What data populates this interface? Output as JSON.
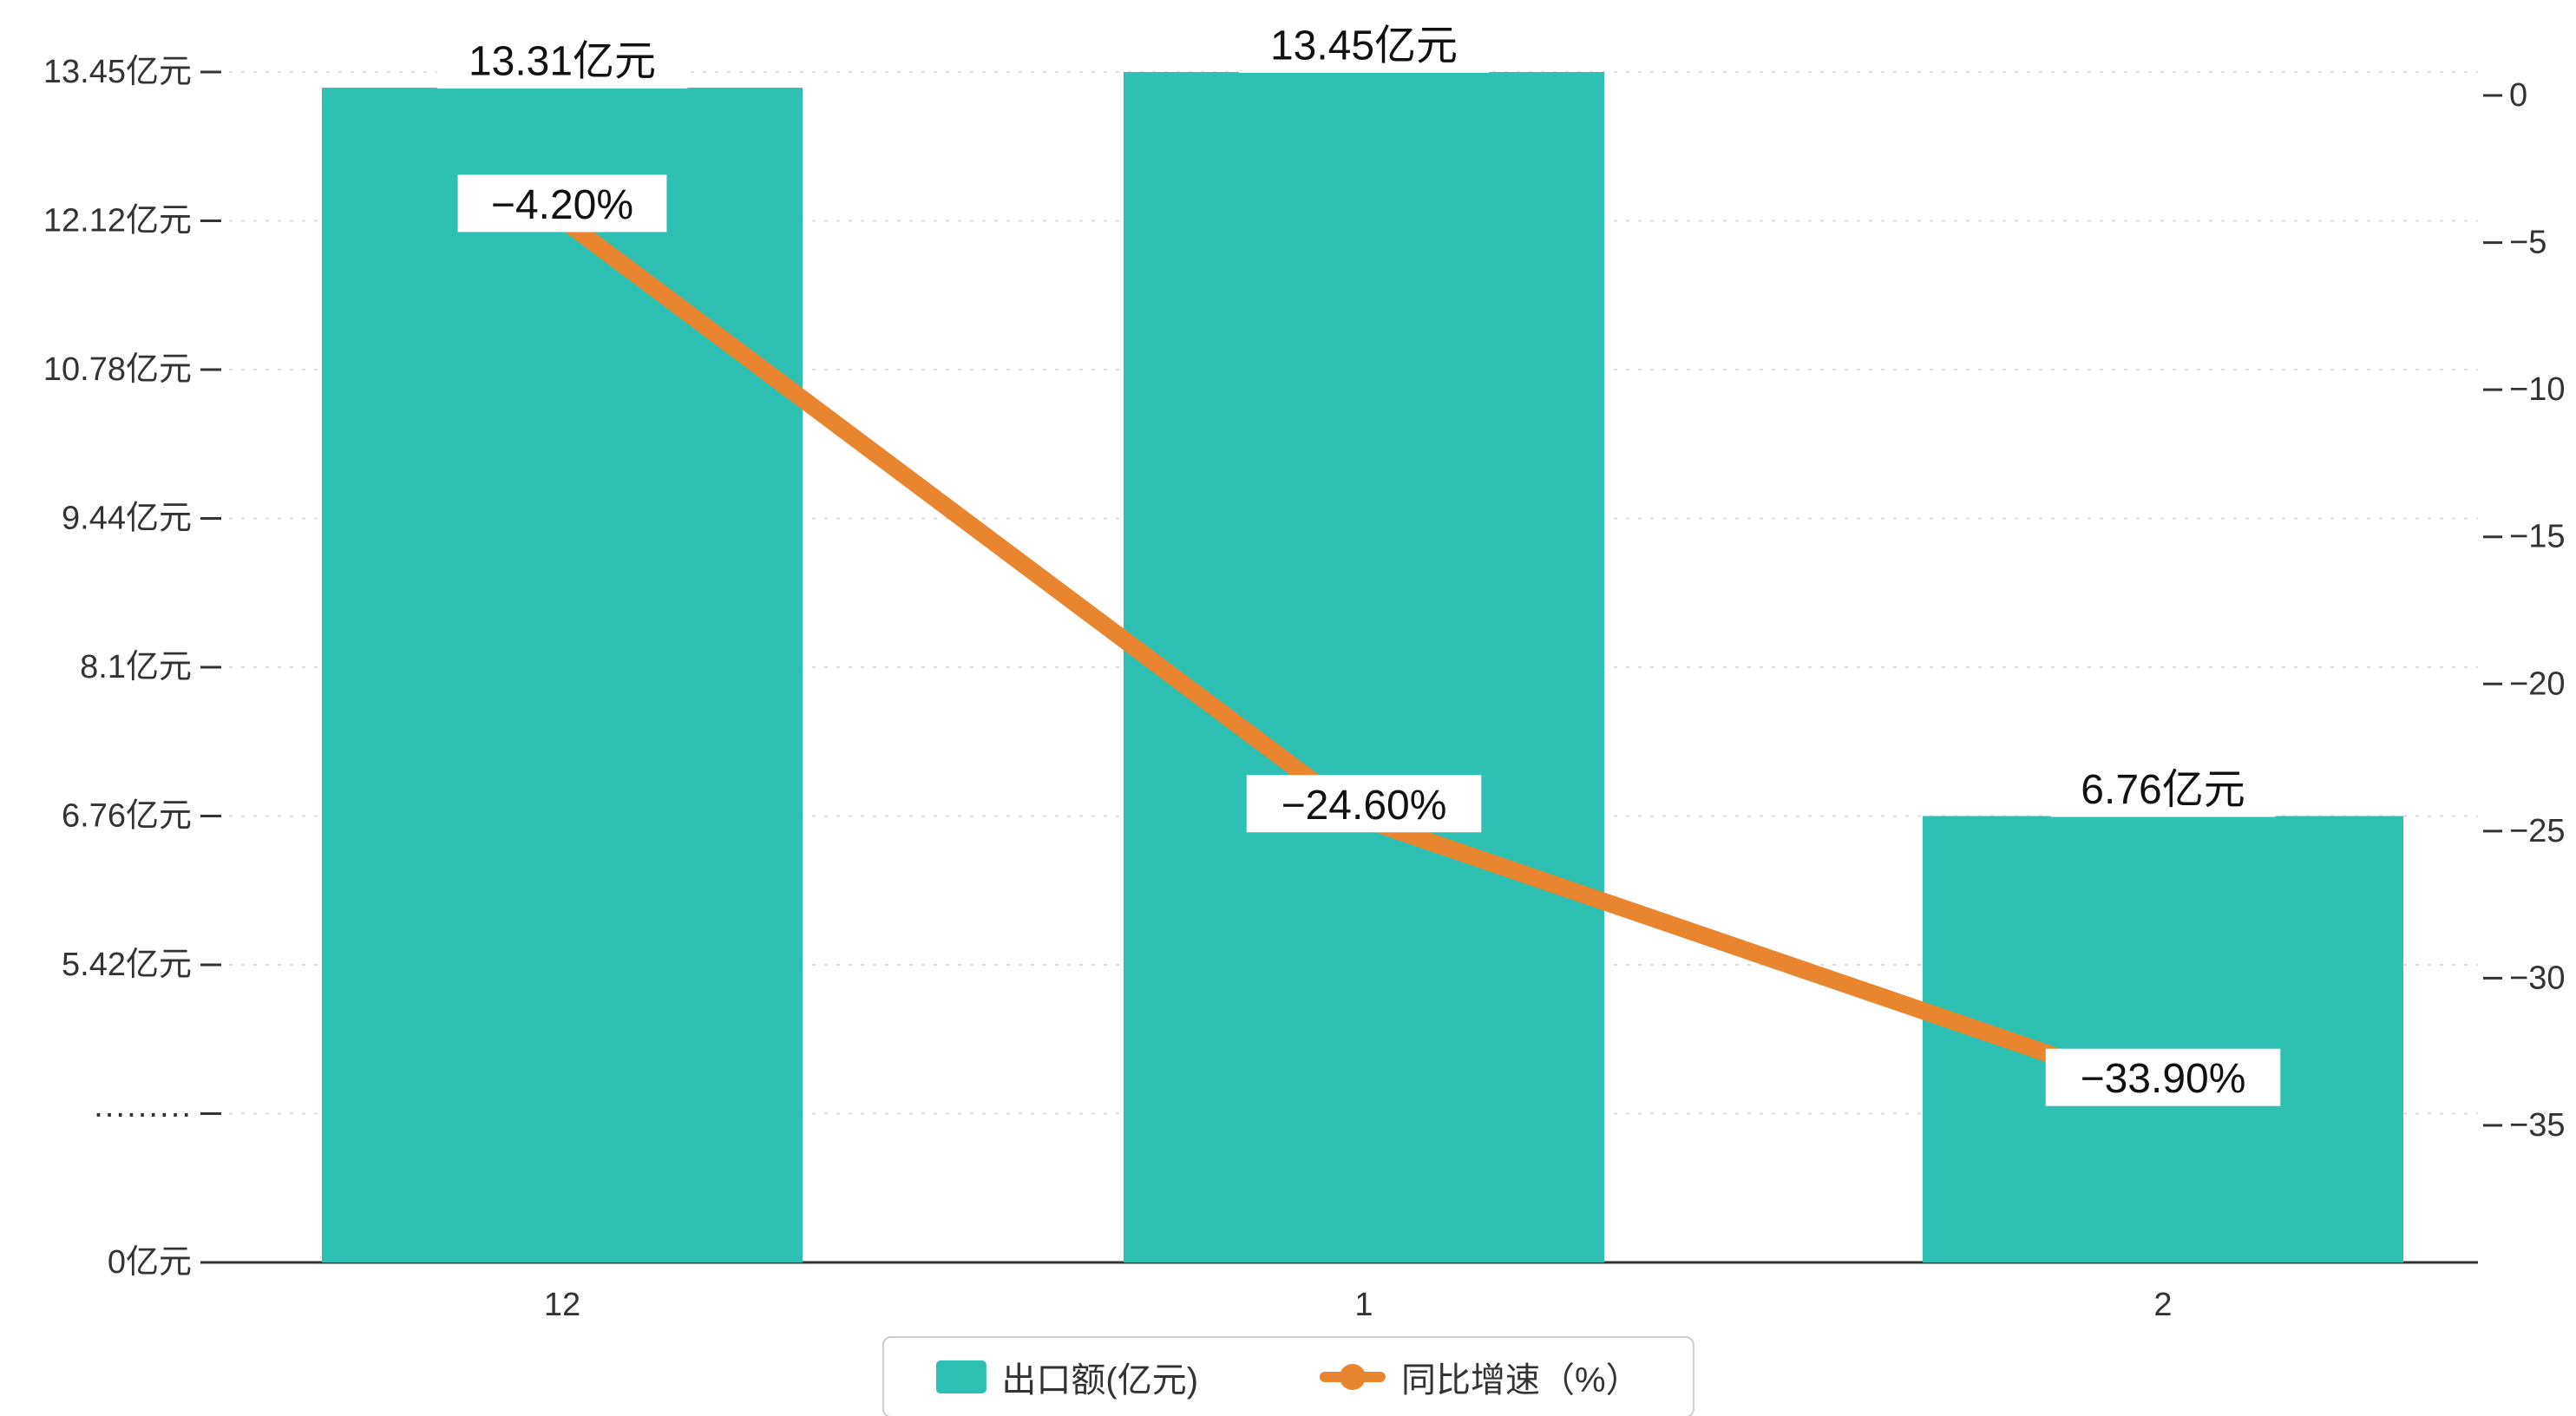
{
  "chart_data": {
    "type": "bar",
    "combo": "bar+line",
    "categories": [
      "12",
      "1",
      "2"
    ],
    "series": [
      {
        "name": "出口额(亿元)",
        "type": "bar",
        "axis": "left",
        "values": [
          13.31,
          13.45,
          6.76
        ],
        "labels": [
          "13.31亿元",
          "13.45亿元",
          "6.76亿元"
        ]
      },
      {
        "name": "同比增速（%）",
        "type": "line",
        "axis": "right",
        "values": [
          -4.2,
          -24.6,
          -33.9
        ],
        "labels": [
          "−4.20%",
          "−24.60%",
          "−33.90%"
        ]
      }
    ],
    "left_axis": {
      "tick_labels": [
        "13.45亿元",
        "12.12亿元",
        "10.78亿元",
        "9.44亿元",
        "8.1亿元",
        "6.76亿元",
        "5.42亿元",
        "·········",
        "0亿元"
      ],
      "tick_values": [
        13.45,
        12.12,
        10.78,
        9.44,
        8.1,
        6.76,
        5.42,
        2.71,
        0
      ],
      "min": 0,
      "max": 13.45
    },
    "right_axis": {
      "tick_labels": [
        "0",
        "−5",
        "−10",
        "−15",
        "−20",
        "−25",
        "−30",
        "−35"
      ],
      "tick_values": [
        0,
        -5,
        -10,
        -15,
        -20,
        -25,
        -30,
        -35
      ],
      "min": -35,
      "max": 0
    },
    "grid": true,
    "legend_position": "bottom",
    "title": "",
    "xlabel": "",
    "ylabel": ""
  },
  "legend": {
    "items": [
      {
        "label": "出口额(亿元)",
        "marker": "bar-swatch"
      },
      {
        "label": "同比增速（%）",
        "marker": "line-swatch"
      }
    ]
  },
  "colors": {
    "bar": "#2ec0b3",
    "line": "#e8852e",
    "grid": "#dcdcdc",
    "axis_line": "#333333",
    "tick_text": "#333333",
    "data_label_text": "#111111",
    "data_label_bg": "#ffffff",
    "background": "#ffffff",
    "legend_border": "#cccccc"
  }
}
